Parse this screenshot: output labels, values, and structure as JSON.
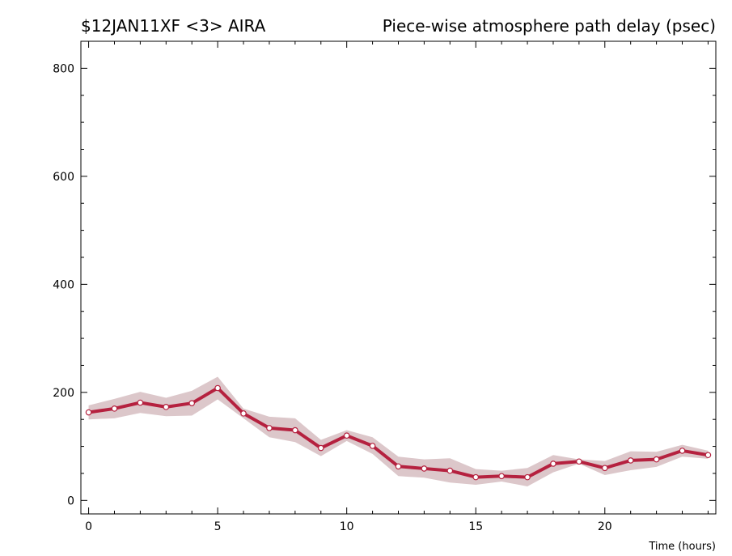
{
  "chart_data": {
    "type": "line",
    "title_left": "$12JAN11XF <3>  AIRA",
    "title_right": "Piece-wise atmosphere path delay (psec)",
    "xlabel": "Time (hours)",
    "ylabel": "",
    "xlim": [
      -0.3,
      24.3
    ],
    "ylim": [
      -25,
      850
    ],
    "xticks": [
      0,
      5,
      10,
      15,
      20
    ],
    "yticks": [
      0,
      200,
      400,
      600,
      800
    ],
    "grid": false,
    "colors": {
      "line": "#b5213f",
      "band": "#dcc7ca",
      "marker_fill": "#ffffff"
    },
    "series": [
      {
        "x": [
          0,
          1,
          2,
          3,
          4,
          5,
          6,
          7,
          8,
          9,
          10,
          11,
          12,
          13,
          14,
          15,
          16,
          17,
          18,
          19,
          20,
          21,
          22,
          23,
          24
        ],
        "values": [
          163,
          170,
          181,
          173,
          180,
          208,
          161,
          134,
          130,
          97,
          120,
          101,
          63,
          59,
          55,
          43,
          45,
          43,
          68,
          72,
          60,
          74,
          76,
          92,
          84
        ],
        "upper": [
          176,
          188,
          201,
          190,
          203,
          229,
          170,
          155,
          152,
          112,
          130,
          117,
          81,
          76,
          78,
          58,
          55,
          60,
          84,
          76,
          73,
          91,
          90,
          103,
          92
        ],
        "lower": [
          150,
          152,
          162,
          156,
          157,
          187,
          152,
          117,
          108,
          82,
          110,
          86,
          45,
          42,
          33,
          29,
          35,
          26,
          52,
          68,
          47,
          56,
          62,
          81,
          77
        ]
      }
    ]
  }
}
